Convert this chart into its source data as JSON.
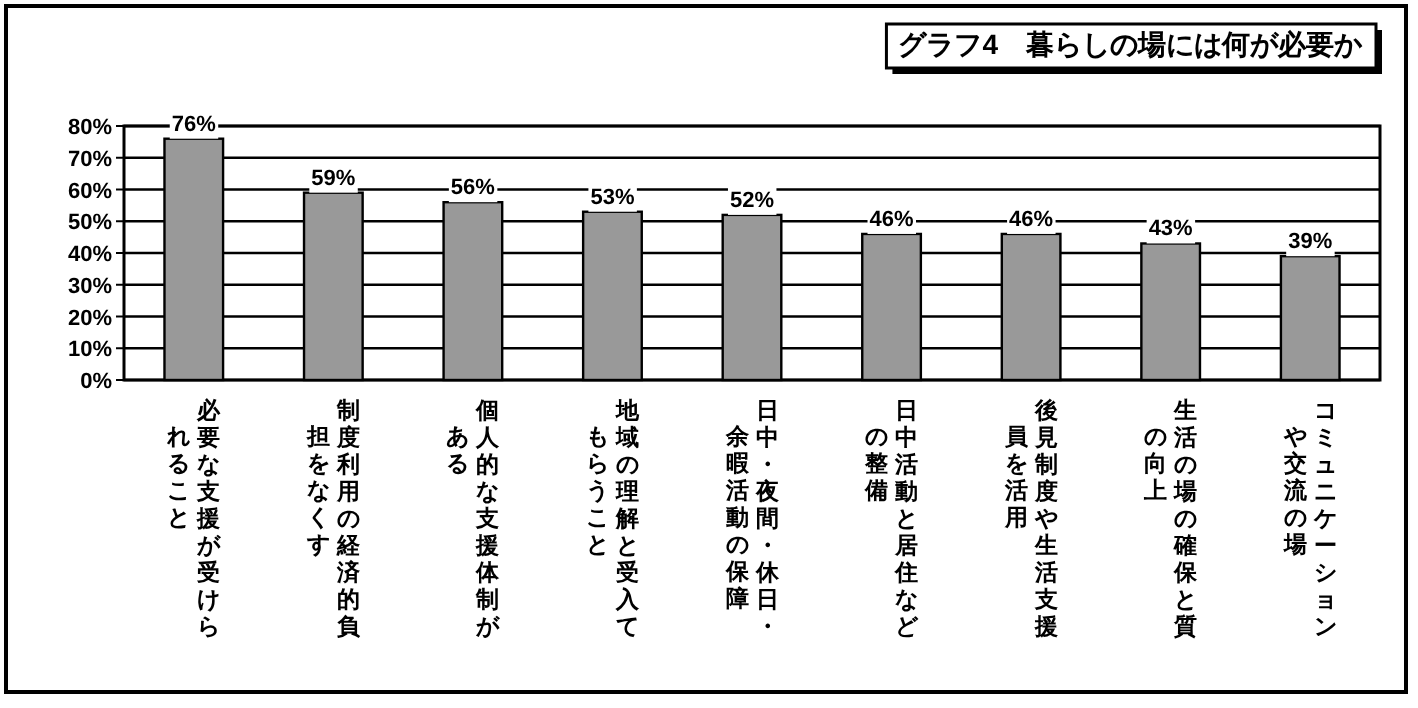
{
  "chart_data": {
    "type": "bar",
    "title": "グラフ4　暮らしの場には何が必要か",
    "categories": [
      "必要な支援が受けられること",
      "制度利用の経済的負担をなくす",
      "個人的な支援体制がある",
      "地域の理解と受入てもらうこと",
      "日中・夜間・休日・余暇活動の保障",
      "日中活動と居住などの整備",
      "後見制度や生活支援員を活用",
      "生活の場の確保と質の向上",
      "コミュニケーションや交流の場"
    ],
    "values": [
      76,
      59,
      56,
      53,
      52,
      46,
      46,
      43,
      39
    ],
    "value_labels": [
      "76%",
      "59%",
      "56%",
      "53%",
      "52%",
      "46%",
      "46%",
      "43%",
      "39%"
    ],
    "color": "#999999",
    "ylim": [
      0,
      80
    ],
    "yticks": [
      {
        "value": 0,
        "label": "0%"
      },
      {
        "value": 10,
        "label": "10%"
      },
      {
        "value": 20,
        "label": "20%"
      },
      {
        "value": 30,
        "label": "30%"
      },
      {
        "value": 40,
        "label": "40%"
      },
      {
        "value": 50,
        "label": "50%"
      },
      {
        "value": 60,
        "label": "60%"
      },
      {
        "value": 70,
        "label": "70%"
      },
      {
        "value": 80,
        "label": "80%"
      }
    ],
    "grid": "y",
    "legend": false
  }
}
